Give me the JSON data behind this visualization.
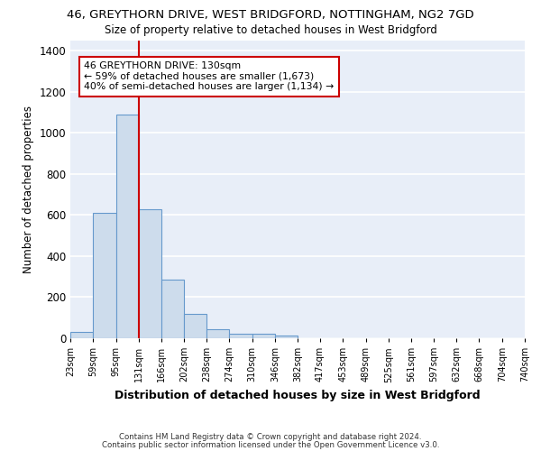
{
  "title_line1": "46, GREYTHORN DRIVE, WEST BRIDGFORD, NOTTINGHAM, NG2 7GD",
  "title_line2": "Size of property relative to detached houses in West Bridgford",
  "xlabel": "Distribution of detached houses by size in West Bridgford",
  "ylabel": "Number of detached properties",
  "bar_color": "#cddcec",
  "bar_edge_color": "#6699cc",
  "bin_edges": [
    23,
    59,
    95,
    131,
    166,
    202,
    238,
    274,
    310,
    346,
    382,
    417,
    453,
    489,
    525,
    561,
    597,
    632,
    668,
    704,
    740
  ],
  "bar_heights": [
    30,
    610,
    1090,
    630,
    285,
    120,
    45,
    20,
    20,
    15,
    0,
    0,
    0,
    0,
    0,
    0,
    0,
    0,
    0,
    0
  ],
  "red_line_x": 131,
  "ylim": [
    0,
    1450
  ],
  "yticks": [
    0,
    200,
    400,
    600,
    800,
    1000,
    1200,
    1400
  ],
  "annotation_text": "46 GREYTHORN DRIVE: 130sqm\n← 59% of detached houses are smaller (1,673)\n40% of semi-detached houses are larger (1,134) →",
  "annotation_box_color": "#ffffff",
  "annotation_box_edge_color": "#cc0000",
  "footer_line1": "Contains HM Land Registry data © Crown copyright and database right 2024.",
  "footer_line2": "Contains public sector information licensed under the Open Government Licence v3.0.",
  "background_color": "#e8eef8",
  "grid_color": "#ffffff",
  "tick_labels": [
    "23sqm",
    "59sqm",
    "95sqm",
    "131sqm",
    "166sqm",
    "202sqm",
    "238sqm",
    "274sqm",
    "310sqm",
    "346sqm",
    "382sqm",
    "417sqm",
    "453sqm",
    "489sqm",
    "525sqm",
    "561sqm",
    "597sqm",
    "632sqm",
    "668sqm",
    "704sqm",
    "740sqm"
  ]
}
